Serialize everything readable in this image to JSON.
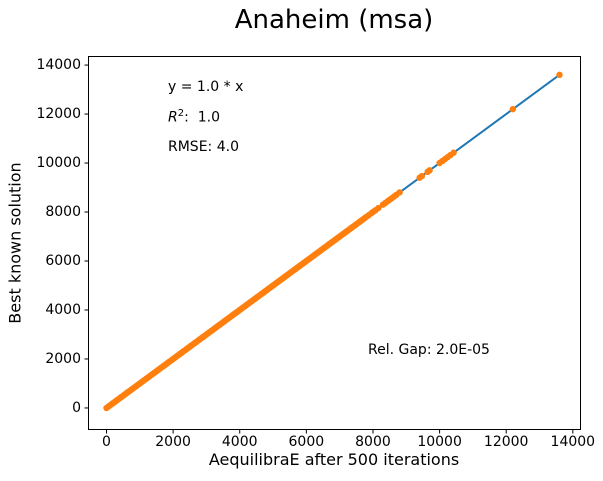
{
  "chart_data": {
    "type": "scatter",
    "title": "Anaheim (msa)",
    "xlabel": "AequilibraE after 500 iterations",
    "ylabel": "Best known solution",
    "x_ticks": [
      0,
      2000,
      4000,
      6000,
      8000,
      10000,
      12000,
      14000
    ],
    "y_ticks": [
      0,
      2000,
      4000,
      6000,
      8000,
      10000,
      12000,
      14000
    ],
    "x_range": [
      -555,
      14245
    ],
    "y_range": [
      -900,
      14370
    ],
    "grid": false,
    "legend": "none",
    "series": [
      {
        "name": "identity-fit-line",
        "type": "line",
        "color": "#1f77b4",
        "x": [
          0,
          13600
        ],
        "y": [
          0,
          13600
        ]
      },
      {
        "name": "link-flows",
        "type": "scatter",
        "color": "#ff7f0e",
        "y_equals_x": true,
        "dense_x": {
          "start": 0,
          "end": 7300,
          "step": 50
        },
        "x": [
          7350,
          7400,
          7460,
          7510,
          7570,
          7620,
          7680,
          7740,
          7800,
          7870,
          7950,
          8010,
          8070,
          8160,
          8300,
          8370,
          8440,
          8500,
          8560,
          8630,
          8700,
          8800,
          9400,
          9470,
          9640,
          9700,
          10000,
          10080,
          10160,
          10240,
          10320,
          10420,
          12200,
          13600
        ]
      }
    ],
    "annotations": {
      "fit_equation": "y = 1.0 * x",
      "r2_base": "R",
      "r2_sup": "2",
      "r2_rest": ":  1.0",
      "rmse": "RMSE: 4.0",
      "rel_gap": "Rel. Gap: 2.0E-05"
    },
    "colors": {
      "scatter": "#ff7f0e",
      "line": "#1f77b4",
      "axes": "#000000",
      "background": "#ffffff"
    },
    "marker_radius_px": 3.2
  }
}
